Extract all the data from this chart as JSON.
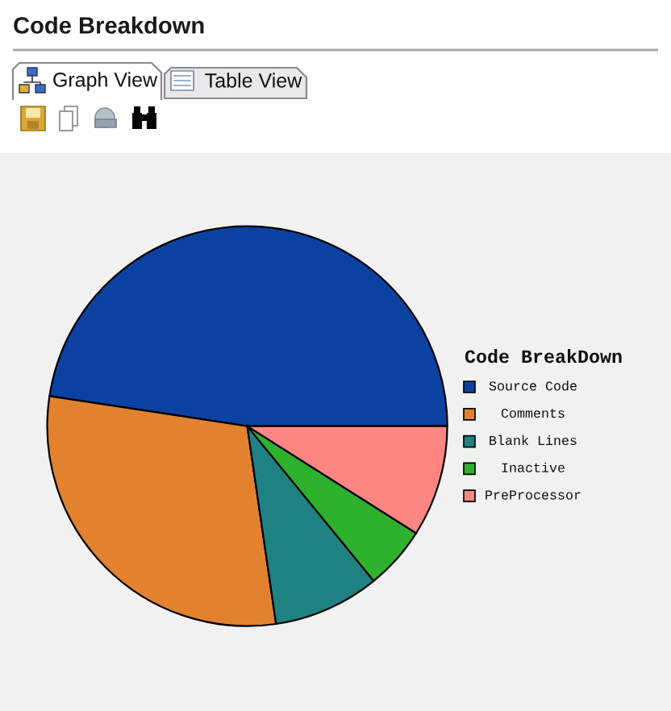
{
  "chart_data": {
    "type": "pie",
    "title": "Code Breakdown",
    "legend_title": "Code BreakDown",
    "categories": [
      "Source Code",
      "Comments",
      "Blank Lines",
      "Inactive",
      "PreProcessor"
    ],
    "values": [
      47.6,
      29.7,
      8.6,
      5.1,
      9.0
    ],
    "colors": [
      "#0b42a2",
      "#e2822f",
      "#1f8282",
      "#2eb22e",
      "#fd8683"
    ],
    "legend": "right",
    "annotations": [
      "Graph View",
      "Table View"
    ]
  }
}
